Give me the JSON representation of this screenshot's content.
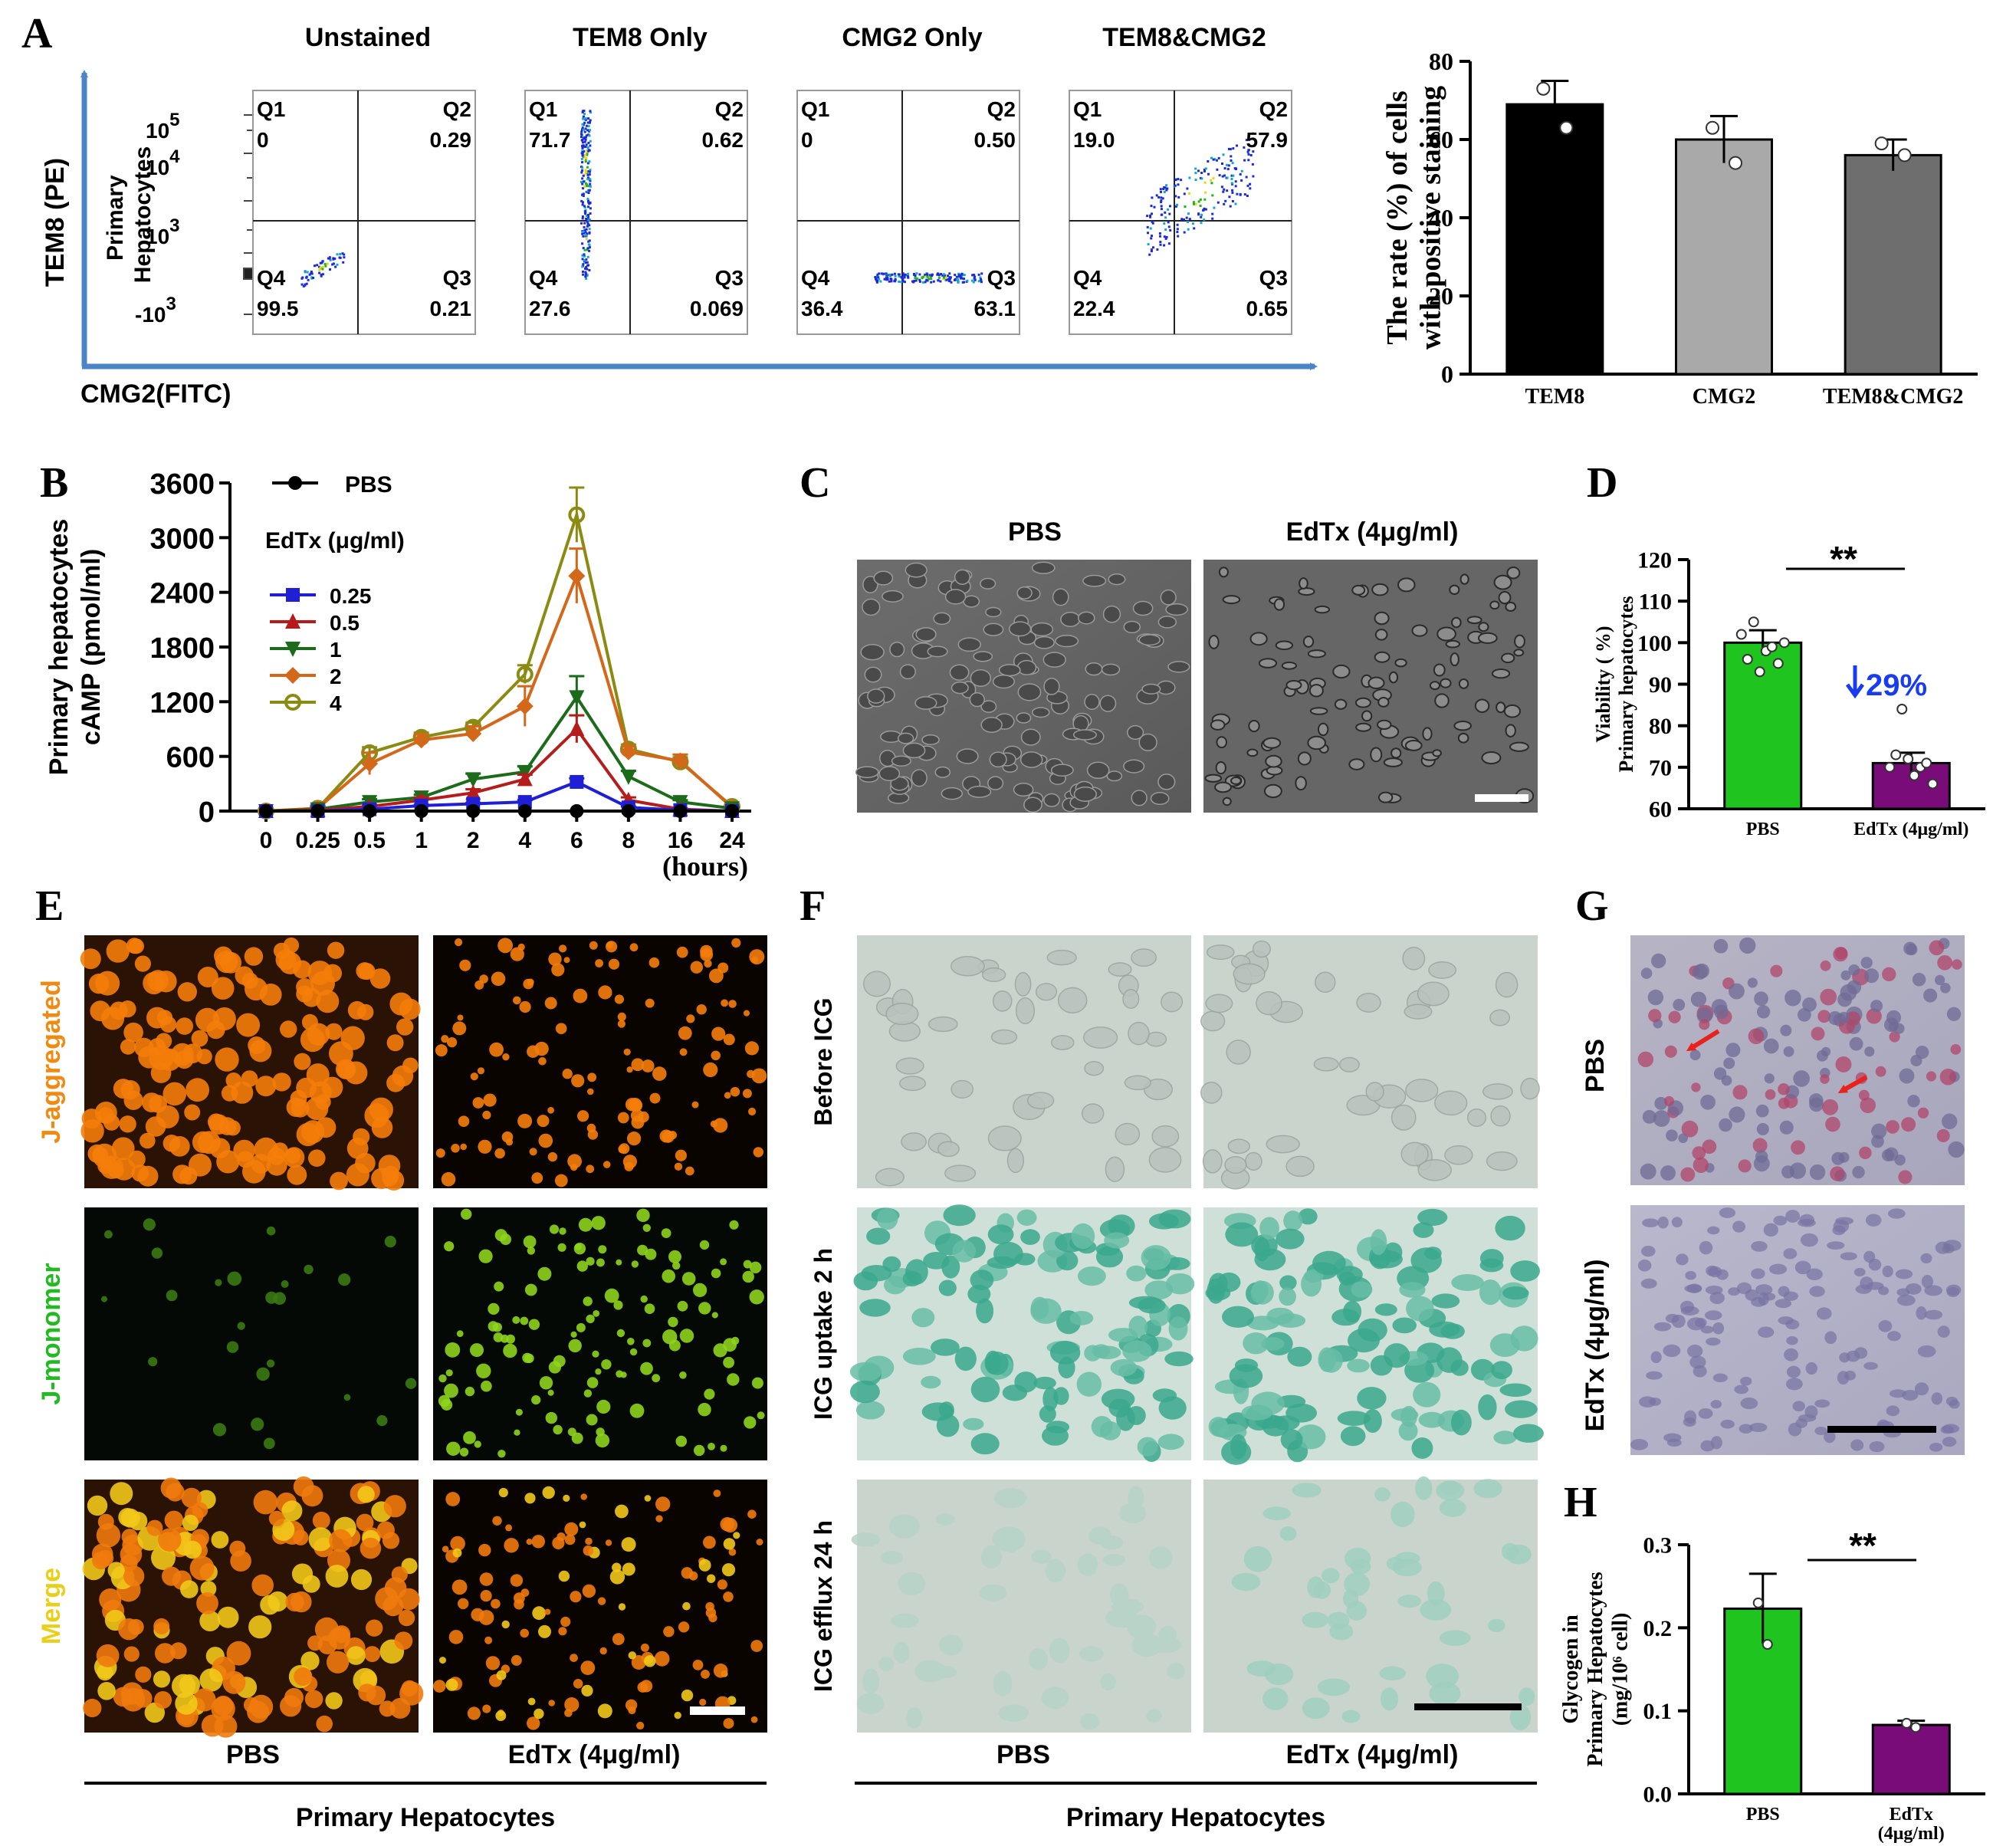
{
  "panel_letters": {
    "A": "A",
    "B": "B",
    "C": "C",
    "D": "D",
    "E": "E",
    "F": "F",
    "G": "G",
    "H": "H"
  },
  "flow": {
    "axis_y": "TEM8 (PE)",
    "axis_x": "CMG2(FITC)",
    "row_label": [
      "Primary",
      "Hepatocytes"
    ],
    "tick_labels": [
      "10",
      "5",
      "10",
      "4",
      "10",
      "3",
      "-10",
      "3"
    ],
    "plots": [
      {
        "title": "Unstained",
        "q_labels": [
          "Q1",
          "Q2",
          "Q3",
          "Q4"
        ],
        "q_values": [
          "0",
          "0.29",
          "0.21",
          "99.5"
        ]
      },
      {
        "title": "TEM8 Only",
        "q_labels": [
          "Q1",
          "Q2",
          "Q3",
          "Q4"
        ],
        "q_values": [
          "71.7",
          "0.62",
          "0.069",
          "27.6"
        ]
      },
      {
        "title": "CMG2 Only",
        "q_labels": [
          "Q1",
          "Q2",
          "Q3",
          "Q4"
        ],
        "q_values": [
          "0",
          "0.50",
          "63.1",
          "36.4"
        ]
      },
      {
        "title": "TEM8&CMG2",
        "q_labels": [
          "Q1",
          "Q2",
          "Q3",
          "Q4"
        ],
        "q_values": [
          "19.0",
          "57.9",
          "0.65",
          "22.4"
        ]
      }
    ]
  },
  "chart_data": [
    {
      "id": "A-bar",
      "type": "bar",
      "categories": [
        "TEM8",
        "CMG2",
        "TEM8&CMG2"
      ],
      "values": [
        69,
        60,
        56
      ],
      "errors": [
        6,
        6,
        4
      ],
      "points": [
        [
          73,
          63
        ],
        [
          63,
          54
        ],
        [
          59,
          56
        ]
      ],
      "colors": [
        "#000000",
        "#a9a9a9",
        "#6e6e6e"
      ],
      "ylabel_lines": [
        "The rate  (%) of cells",
        "with positive staining"
      ],
      "ylim": [
        0,
        80
      ],
      "yticks": [
        "0",
        "20",
        "40",
        "60",
        "80"
      ]
    },
    {
      "id": "B-line",
      "type": "line",
      "x": [
        "0",
        "0.25",
        "0.5",
        "1",
        "2",
        "4",
        "6",
        "8",
        "16",
        "24"
      ],
      "xlabel": "(hours)",
      "ylabel_lines": [
        "Primary hepatocytes",
        "cAMP (pmol/ml)"
      ],
      "ylim": [
        0,
        3600
      ],
      "yticks": [
        "0",
        "600",
        "1200",
        "1800",
        "2400",
        "3000",
        "3600"
      ],
      "legend_title": "EdTx (μg/ml)",
      "series": [
        {
          "name": "PBS",
          "color": "#000000",
          "marker": "circle",
          "values": [
            0,
            0,
            0,
            0,
            0,
            0,
            0,
            0,
            0,
            0
          ],
          "errors": [
            0,
            0,
            0,
            0,
            0,
            0,
            0,
            0,
            0,
            0
          ]
        },
        {
          "name": "0.25",
          "color": "#1f1fd6",
          "marker": "square",
          "values": [
            0,
            0,
            20,
            60,
            80,
            100,
            320,
            40,
            10,
            0
          ],
          "errors": [
            0,
            0,
            10,
            10,
            10,
            20,
            40,
            10,
            5,
            0
          ]
        },
        {
          "name": "0.5",
          "color": "#b51d1d",
          "marker": "triangle",
          "values": [
            0,
            10,
            50,
            120,
            200,
            350,
            900,
            120,
            20,
            0
          ],
          "errors": [
            0,
            5,
            20,
            30,
            40,
            50,
            150,
            30,
            10,
            0
          ]
        },
        {
          "name": "1",
          "color": "#1b6b1b",
          "marker": "triangle-down",
          "values": [
            0,
            20,
            100,
            150,
            350,
            430,
            1250,
            380,
            100,
            30
          ],
          "errors": [
            0,
            10,
            30,
            30,
            60,
            60,
            230,
            60,
            20,
            10
          ]
        },
        {
          "name": "2",
          "color": "#d4681a",
          "marker": "diamond",
          "values": [
            0,
            30,
            520,
            780,
            850,
            1150,
            2580,
            650,
            550,
            40
          ],
          "errors": [
            0,
            10,
            120,
            60,
            80,
            220,
            300,
            60,
            70,
            20
          ]
        },
        {
          "name": "4",
          "color": "#8b8b14",
          "marker": "hexagon",
          "values": [
            0,
            30,
            640,
            810,
            920,
            1500,
            3250,
            680,
            540,
            50
          ],
          "errors": [
            0,
            10,
            60,
            50,
            50,
            100,
            300,
            50,
            50,
            20
          ]
        }
      ]
    },
    {
      "id": "D-bar",
      "type": "bar",
      "categories": [
        "PBS",
        "EdTx (4μg/ml)"
      ],
      "values": [
        100,
        71
      ],
      "errors": [
        3,
        2.5
      ],
      "points": [
        [
          102,
          96,
          105,
          93,
          98,
          99,
          95,
          100
        ],
        [
          70,
          73,
          84,
          72,
          68,
          70,
          71,
          66
        ]
      ],
      "colors": [
        "#1fc41f",
        "#7a0c7a"
      ],
      "ylabel_lines": [
        "Viability (  %)",
        "Primary hepatocytes"
      ],
      "ylim": [
        60,
        120
      ],
      "yticks": [
        "60",
        "70",
        "80",
        "90",
        "100",
        "110",
        "120"
      ],
      "significance": "**",
      "annotation": "29%"
    },
    {
      "id": "H-bar",
      "type": "bar",
      "categories": [
        "PBS",
        "EdTx (4μg/ml)"
      ],
      "category_lines": [
        [
          "PBS"
        ],
        [
          "EdTx",
          "(4μg/ml)"
        ]
      ],
      "values": [
        0.223,
        0.083
      ],
      "errors": [
        0.042,
        0.005
      ],
      "points": [
        [
          0.23,
          0.18
        ],
        [
          0.085,
          0.08
        ]
      ],
      "colors": [
        "#1fc41f",
        "#7a0c7a"
      ],
      "ylabel_lines": [
        "Glycogen in",
        "Primary Hepatocytes",
        "(mg/10⁶ cell)"
      ],
      "ylim": [
        0,
        0.3
      ],
      "yticks": [
        "0.0",
        "0.1",
        "0.2",
        "0.3"
      ],
      "significance": "**"
    }
  ],
  "panelC": {
    "headers": [
      "PBS",
      "EdTx (4μg/ml)"
    ]
  },
  "panelE": {
    "rows": [
      "J-aggregated",
      "J-monomer",
      "Merge"
    ],
    "row_colors": [
      "#f08a12",
      "#22b922",
      "#e8d01a"
    ],
    "cols": [
      "PBS",
      "EdTx (4μg/ml)"
    ],
    "group": "Primary Hepatocytes"
  },
  "panelF": {
    "rows": [
      "Before ICG",
      "ICG uptake 2 h",
      "ICG efflux 24 h"
    ],
    "cols": [
      "PBS",
      "EdTx (4μg/ml)"
    ],
    "group": "Primary Hepatocytes"
  },
  "panelG": {
    "rows": [
      "PBS",
      "EdTx (4μg/ml)"
    ]
  },
  "colors": {
    "axis_blue": "#4a86c5",
    "arrow_red": "#e8231e",
    "annot_blue": "#1a3cf0"
  }
}
